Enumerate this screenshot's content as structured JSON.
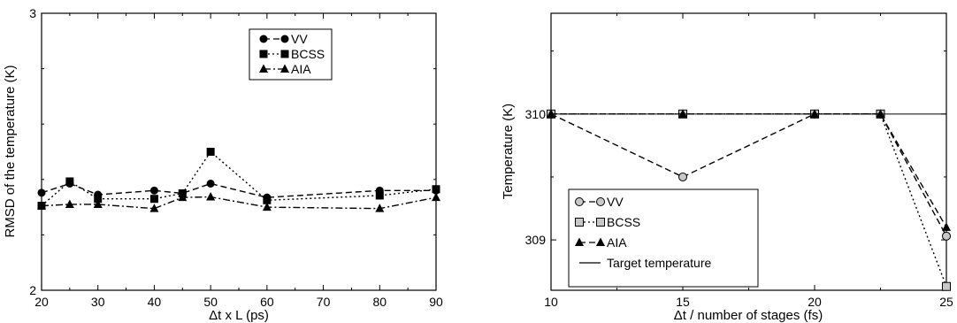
{
  "chart_data": [
    {
      "type": "line",
      "title": "",
      "xlabel": "Δt x L (ps)",
      "ylabel": "RMSD of the temperature (K)",
      "xlim": [
        20,
        90
      ],
      "ylim": [
        2,
        3
      ],
      "x_ticks": [
        "20",
        "30",
        "40",
        "50",
        "60",
        "70",
        "80",
        "90"
      ],
      "y_ticks": [
        "2",
        "3"
      ],
      "grid": false,
      "legend_position": "top-center",
      "series": [
        {
          "name": "VV",
          "marker": "circle",
          "dash": "dashed",
          "x": [
            20,
            25,
            30,
            40,
            45,
            50,
            60,
            80,
            90
          ],
          "y": [
            2.352,
            2.385,
            2.345,
            2.36,
            2.35,
            2.385,
            2.335,
            2.36,
            2.36
          ]
        },
        {
          "name": "BCSS",
          "marker": "square",
          "dash": "dotted",
          "x": [
            20,
            25,
            30,
            40,
            45,
            50,
            60,
            80,
            90
          ],
          "y": [
            2.305,
            2.393,
            2.33,
            2.33,
            2.35,
            2.5,
            2.325,
            2.342,
            2.365
          ]
        },
        {
          "name": "AIA",
          "marker": "triangle",
          "dash": "dashdot",
          "x": [
            20,
            25,
            30,
            40,
            45,
            50,
            60,
            80,
            90
          ],
          "y": [
            2.305,
            2.31,
            2.31,
            2.295,
            2.335,
            2.337,
            2.3,
            2.295,
            2.335
          ]
        }
      ]
    },
    {
      "type": "line",
      "title": "",
      "xlabel": "Δt / number of stages (fs)",
      "ylabel": "Temperature (K)",
      "xlim": [
        10,
        25
      ],
      "ylim": [
        308.6,
        310.8
      ],
      "x_ticks": [
        "10",
        "15",
        "20",
        "25"
      ],
      "y_ticks": [
        "309",
        "310"
      ],
      "grid": false,
      "legend_position": "bottom-left",
      "series": [
        {
          "name": "VV",
          "marker": "circle",
          "marker_fill": "#c8c8c8",
          "dash": "dashed",
          "x": [
            10,
            15,
            20,
            22.5,
            25
          ],
          "y": [
            310.0,
            309.5,
            310.0,
            310.0,
            309.03
          ]
        },
        {
          "name": "BCSS",
          "marker": "square",
          "marker_fill": "#c8c8c8",
          "dash": "dotted",
          "x": [
            10,
            15,
            20,
            22.5,
            25
          ],
          "y": [
            310.0,
            310.0,
            310.0,
            310.0,
            308.63
          ]
        },
        {
          "name": "AIA",
          "marker": "triangle",
          "marker_fill": "#000000",
          "dash": "dashed",
          "x": [
            10,
            15,
            20,
            22.5,
            25
          ],
          "y": [
            310.0,
            310.0,
            310.0,
            310.0,
            309.1
          ]
        },
        {
          "name": "Target temperature",
          "marker": "none",
          "dash": "solid",
          "x": [
            10,
            25
          ],
          "y": [
            310.0,
            310.0
          ]
        }
      ]
    }
  ]
}
